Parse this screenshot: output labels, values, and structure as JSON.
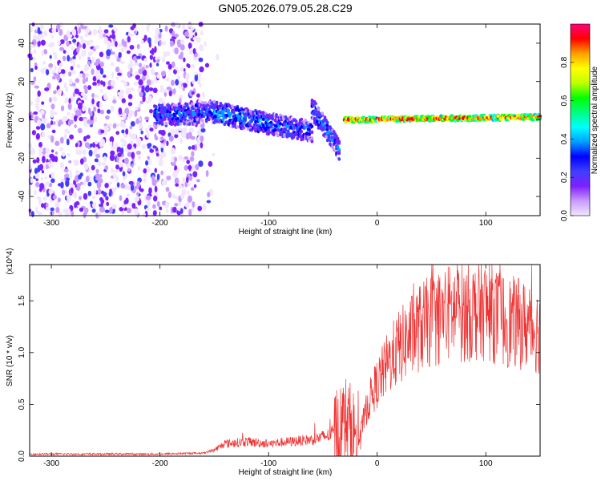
{
  "title": "GN05.2026.079.05.28.C29",
  "chart_data": [
    {
      "type": "heatmap",
      "title": "GN05.2026.079.05.28.C29",
      "xlabel": "Height of straight line (km)",
      "ylabel": "Frequency (Hz)",
      "xlim": [
        -320,
        150
      ],
      "ylim": [
        -50,
        50
      ],
      "xticks": [
        -300,
        -200,
        -100,
        0,
        100
      ],
      "yticks": [
        -40,
        -20,
        0,
        20,
        40
      ],
      "colorbar": {
        "label": "Normalized spectral amplitude",
        "range": [
          0,
          1
        ],
        "ticks": [
          "0.0",
          "0.2",
          "0.4",
          "0.6",
          "0.8"
        ],
        "colors": [
          "#f2e6ff",
          "#c89bff",
          "#7f1fff",
          "#3f3fff",
          "#0000ff",
          "#00a0ff",
          "#00ffff",
          "#00ff80",
          "#00ff00",
          "#c0ff00",
          "#ffff00",
          "#ffa000",
          "#ff0000",
          "#ff0080"
        ]
      },
      "features": {
        "noise_region_x": [
          -320,
          -160
        ],
        "band_segments": [
          {
            "x": [
              -205,
              -150
            ],
            "f": [
              2,
              4
            ],
            "amp": 0.3
          },
          {
            "x": [
              -150,
              -100
            ],
            "f": [
              4,
              -2
            ],
            "amp": 0.35
          },
          {
            "x": [
              -100,
              -60
            ],
            "f": [
              -2,
              -6
            ],
            "amp": 0.3
          },
          {
            "x": [
              -60,
              -35
            ],
            "f": [
              6,
              -15
            ],
            "amp": 0.3
          },
          {
            "x": [
              -30,
              150
            ],
            "f": [
              0,
              1.5
            ],
            "amp": 0.9
          }
        ]
      }
    },
    {
      "type": "line",
      "xlabel": "Height of straight line (km)",
      "ylabel": "SNR (10 * v/v)",
      "y_multiplier": "(x10^4)",
      "xlim": [
        -320,
        150
      ],
      "ylim": [
        0,
        1.85
      ],
      "xticks": [
        -300,
        -200,
        -100,
        0,
        100
      ],
      "yticks": [
        0.0,
        0.5,
        1.0,
        1.5
      ],
      "color": "#ee3333",
      "x": [
        -320,
        -250,
        -200,
        -160,
        -150,
        -140,
        -120,
        -100,
        -80,
        -60,
        -45,
        -35,
        -28,
        -24,
        -20,
        -15,
        -10,
        -5,
        0,
        5,
        10,
        20,
        30,
        40,
        50,
        60,
        70,
        80,
        90,
        100,
        110,
        120,
        130,
        140,
        150
      ],
      "y": [
        0.02,
        0.02,
        0.02,
        0.03,
        0.06,
        0.12,
        0.14,
        0.12,
        0.14,
        0.16,
        0.2,
        0.26,
        0.35,
        0.25,
        0.2,
        0.25,
        0.45,
        0.6,
        0.7,
        0.8,
        0.9,
        1.05,
        1.15,
        1.25,
        1.3,
        1.35,
        1.4,
        1.38,
        1.4,
        1.42,
        1.35,
        1.3,
        1.28,
        1.25,
        1.2
      ]
    }
  ]
}
